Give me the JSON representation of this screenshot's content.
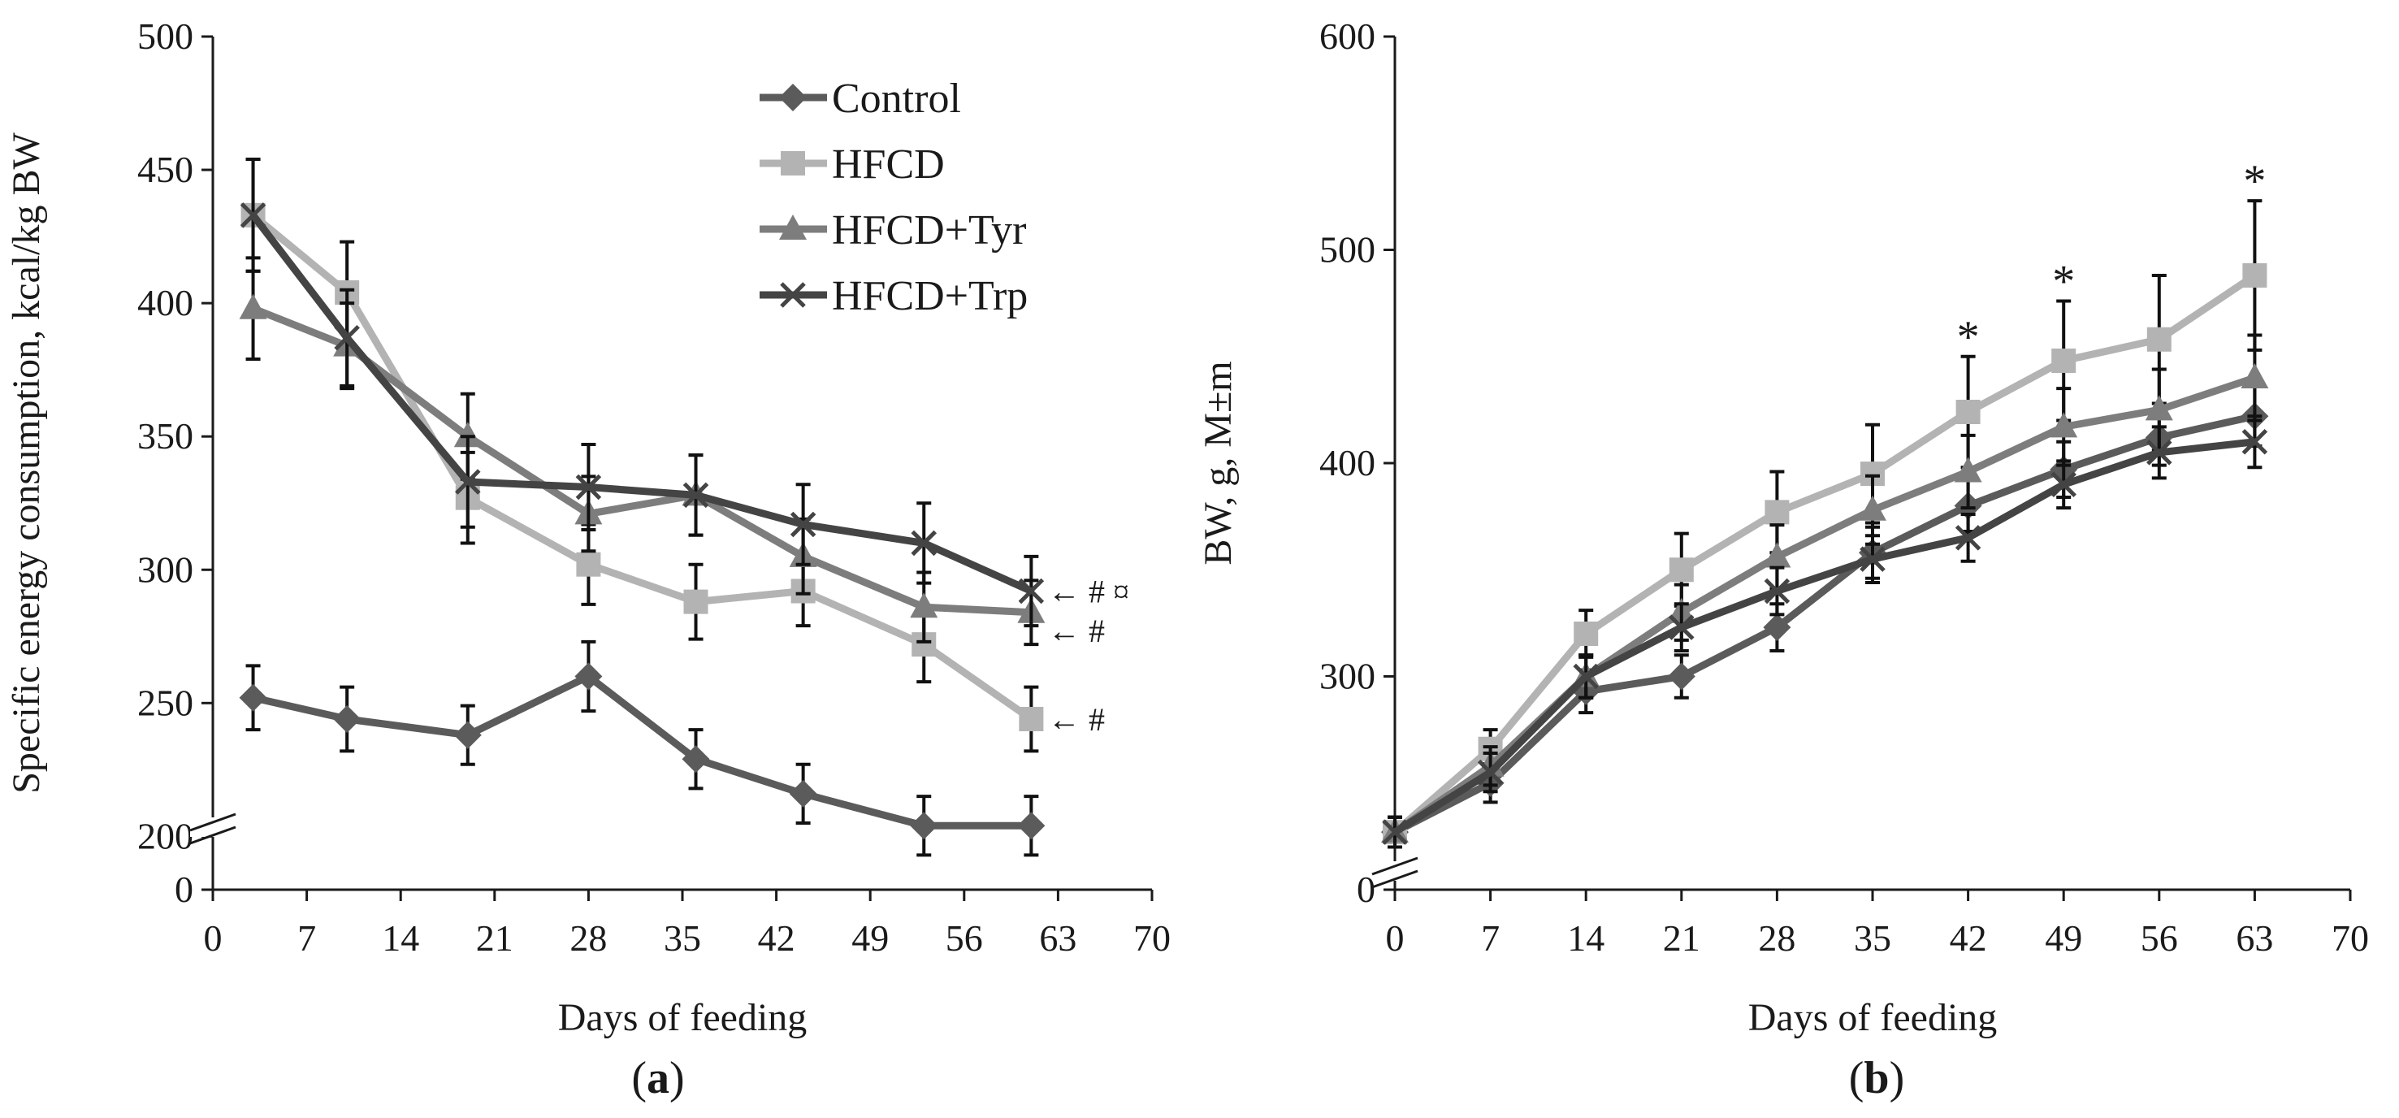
{
  "colors": {
    "control": "#5b5b5b",
    "hfcd": "#b3b3b3",
    "tyr": "#7d7d7d",
    "trp": "#444444",
    "axis": "#1a1a1a"
  },
  "chart_data": [
    {
      "id": "a",
      "type": "line",
      "panel_label_open": "(",
      "panel_label": "a",
      "panel_label_close": ")",
      "xlabel": "Days of feeding",
      "ylabel": "Specific energy consumption, kcal/kg BW",
      "xlim": [
        0,
        70
      ],
      "xticks": [
        0,
        7,
        14,
        21,
        28,
        35,
        42,
        49,
        56,
        63,
        70
      ],
      "xtick_labels": [
        "0",
        "7",
        "14",
        "21",
        "28",
        "35",
        "42",
        "49",
        "56",
        "63",
        "70"
      ],
      "ylim": [
        180,
        500
      ],
      "yticks": [
        200,
        250,
        300,
        350,
        400,
        450,
        500
      ],
      "ytick_labels": [
        "200",
        "250",
        "300",
        "350",
        "400",
        "450",
        "500"
      ],
      "broken_axis": true,
      "zero_label": "0",
      "legend_position": "top-center",
      "series": [
        {
          "name": "Control",
          "marker": "diamond",
          "color_key": "control",
          "x": [
            3,
            10,
            19,
            28,
            36,
            44,
            53,
            61
          ],
          "y": [
            252,
            244,
            238,
            260,
            229,
            216,
            204,
            204
          ],
          "err": [
            12,
            12,
            11,
            13,
            11,
            11,
            11,
            11
          ],
          "annotation": ""
        },
        {
          "name": "HFCD",
          "marker": "square",
          "color_key": "hfcd",
          "x": [
            3,
            10,
            19,
            28,
            36,
            44,
            53,
            61
          ],
          "y": [
            433,
            404,
            327,
            302,
            288,
            292,
            272,
            244
          ],
          "err": [
            21,
            19,
            17,
            15,
            14,
            13,
            14,
            12
          ],
          "annotation": "← #"
        },
        {
          "name": "HFCD+Tyr",
          "marker": "triangle",
          "color_key": "tyr",
          "x": [
            3,
            10,
            19,
            28,
            36,
            44,
            53,
            61
          ],
          "y": [
            398,
            384,
            350,
            321,
            328,
            305,
            286,
            284
          ],
          "err": [
            19,
            16,
            16,
            14,
            15,
            14,
            13,
            12
          ],
          "annotation": "← #"
        },
        {
          "name": "HFCD+Trp",
          "marker": "x",
          "color_key": "trp",
          "x": [
            3,
            10,
            19,
            28,
            36,
            44,
            53,
            61
          ],
          "y": [
            433,
            387,
            333,
            331,
            328,
            317,
            310,
            292
          ],
          "err": [
            21,
            18,
            17,
            16,
            15,
            15,
            15,
            13
          ],
          "annotation": "← # ¤"
        }
      ]
    },
    {
      "id": "b",
      "type": "line",
      "panel_label_open": "(",
      "panel_label": "b",
      "panel_label_close": ")",
      "xlabel": "Days of feeding",
      "ylabel": "BW, g, M±m",
      "xlim": [
        0,
        70
      ],
      "xticks": [
        0,
        7,
        14,
        21,
        28,
        35,
        42,
        49,
        56,
        63,
        70
      ],
      "xtick_labels": [
        "0",
        "7",
        "14",
        "21",
        "28",
        "35",
        "42",
        "49",
        "56",
        "63",
        "70"
      ],
      "ylim": [
        200,
        600
      ],
      "yticks": [
        300,
        400,
        500,
        600
      ],
      "ytick_labels": [
        "300",
        "400",
        "500",
        "600"
      ],
      "broken_axis": true,
      "zero_label": "0",
      "significance_marker": "*",
      "significance_days": [
        42,
        49,
        63
      ],
      "series": [
        {
          "name": "Control",
          "marker": "diamond",
          "color_key": "control",
          "x": [
            0,
            7,
            14,
            21,
            28,
            35,
            42,
            49,
            56,
            63
          ],
          "y": [
            227,
            250,
            293,
            300,
            323,
            358,
            380,
            397,
            412,
            422
          ],
          "err": [
            7,
            9,
            10,
            10,
            11,
            12,
            12,
            13,
            13,
            14
          ]
        },
        {
          "name": "HFCD",
          "marker": "square",
          "color_key": "hfcd",
          "x": [
            0,
            7,
            14,
            21,
            28,
            35,
            42,
            49,
            56,
            63
          ],
          "y": [
            227,
            266,
            320,
            350,
            377,
            395,
            424,
            448,
            458,
            488
          ],
          "err": [
            7,
            9,
            11,
            17,
            19,
            23,
            26,
            28,
            30,
            35
          ]
        },
        {
          "name": "HFCD+Tyr",
          "marker": "triangle",
          "color_key": "tyr",
          "x": [
            0,
            7,
            14,
            21,
            28,
            35,
            42,
            49,
            56,
            63
          ],
          "y": [
            227,
            258,
            300,
            330,
            356,
            378,
            396,
            417,
            425,
            440
          ],
          "err": [
            7,
            9,
            10,
            13,
            15,
            16,
            17,
            18,
            19,
            20
          ]
        },
        {
          "name": "HFCD+Trp",
          "marker": "x",
          "color_key": "trp",
          "x": [
            0,
            7,
            14,
            21,
            28,
            35,
            42,
            49,
            56,
            63
          ],
          "y": [
            227,
            255,
            300,
            323,
            340,
            355,
            365,
            390,
            405,
            410
          ],
          "err": [
            7,
            9,
            10,
            11,
            11,
            11,
            11,
            11,
            12,
            12
          ]
        }
      ]
    }
  ]
}
